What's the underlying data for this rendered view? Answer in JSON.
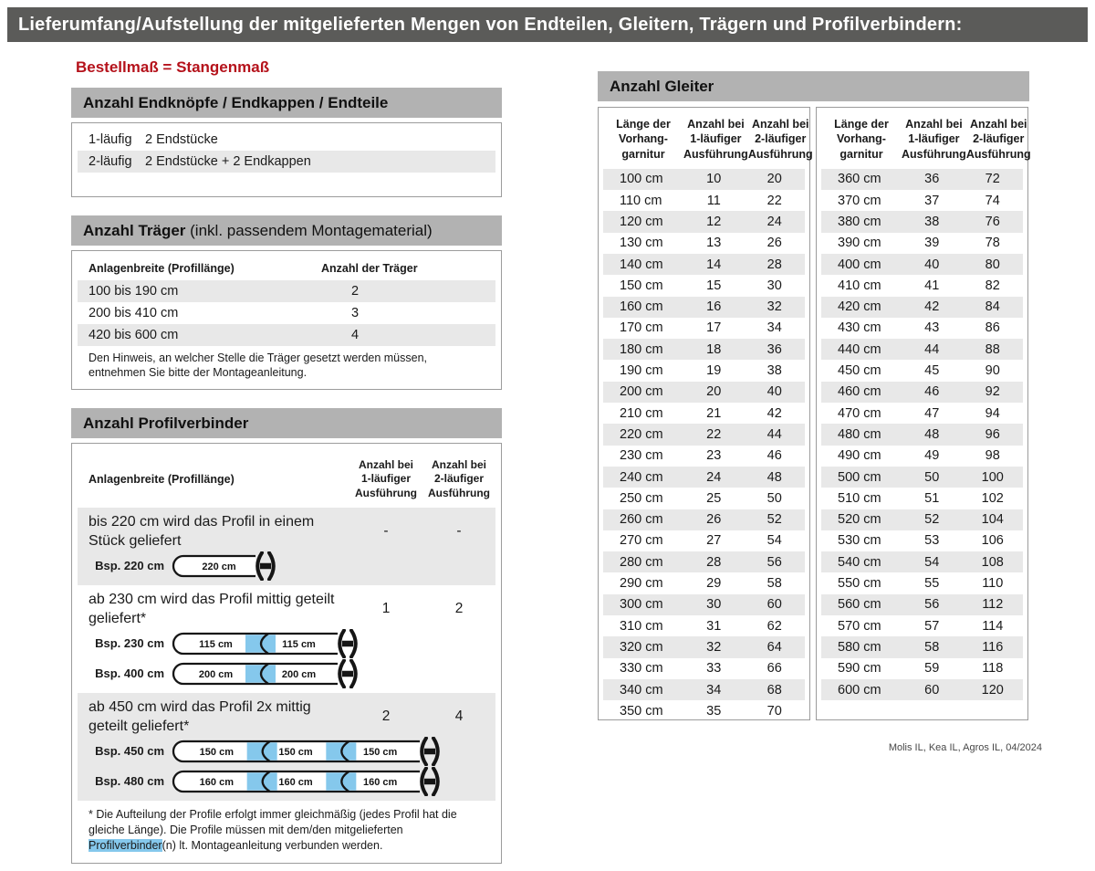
{
  "title": "Lieferumfang/Aufstellung der mitgelieferten Mengen von Endteilen, Gleitern, Trägern und Profilverbindern:",
  "colors": {
    "titlebar_gray": "#5b5b59",
    "section_header_gray": "#b2b2b2",
    "row_stripe_gray": "#e8e8e8",
    "border_gray": "#9c9c9c",
    "accent_red": "#b5121b",
    "connector_blue": "#85c8ec",
    "text_black": "#1a1a1a"
  },
  "left": {
    "order_note": "Bestellmaß = Stangenmaß",
    "endteile": {
      "header": "Anzahl Endknöpfe / Endkappen / Endteile",
      "rows": [
        {
          "label": "1-läufig",
          "value": "2 Endstücke"
        },
        {
          "label": "2-läufig",
          "value": "2 Endstücke + 2 Endkappen"
        }
      ]
    },
    "traeger": {
      "header_bold": "Anzahl Träger",
      "header_rest": " (inkl. passendem Montagematerial)",
      "col1": "Anlagenbreite (Profillänge)",
      "col2": "Anzahl der Träger",
      "rows": [
        {
          "range": "100 bis 190 cm",
          "count": "2"
        },
        {
          "range": "200 bis 410 cm",
          "count": "3"
        },
        {
          "range": "420 bis 600 cm",
          "count": "4"
        }
      ],
      "note": "Den Hinweis, an welcher Stelle die Träger gesetzt werden müssen, entnehmen Sie bitte der Montageanleitung."
    },
    "verbinder": {
      "header": "Anzahl Profilverbinder",
      "col1": "Anlagenbreite (Profillänge)",
      "col2_lines": [
        "Anzahl bei",
        "1-läufiger",
        "Ausführung"
      ],
      "col3_lines": [
        "Anzahl bei",
        "2-läufiger",
        "Ausführung"
      ],
      "groups": [
        {
          "text": "bis 220 cm wird das Profil in einem Stück geliefert",
          "val1": "-",
          "val2": "-",
          "shaded": true,
          "examples": [
            {
              "label": "Bsp. 220 cm",
              "segments": [
                "220 cm"
              ]
            }
          ]
        },
        {
          "text": "ab 230 cm wird das Profil mittig geteilt geliefert*",
          "val1": "1",
          "val2": "2",
          "shaded": false,
          "examples": [
            {
              "label": "Bsp. 230 cm",
              "segments": [
                "115 cm",
                "115 cm"
              ]
            },
            {
              "label": "Bsp. 400 cm",
              "segments": [
                "200 cm",
                "200 cm"
              ]
            }
          ]
        },
        {
          "text": "ab 450 cm wird das Profil 2x mittig geteilt geliefert*",
          "val1": "2",
          "val2": "4",
          "shaded": true,
          "examples": [
            {
              "label": "Bsp. 450 cm",
              "segments": [
                "150 cm",
                "150 cm",
                "150 cm"
              ]
            },
            {
              "label": "Bsp. 480 cm",
              "segments": [
                "160 cm",
                "160 cm",
                "160 cm"
              ]
            }
          ]
        }
      ],
      "footnote_parts": [
        "* Die Aufteilung der Profile erfolgt immer gleichmäßig (jedes Profil hat die gleiche Länge). Die Profile müssen mit dem/den mitgelieferten ",
        "Profilverbinder",
        "(n) lt. Montageanleitung verbunden werden."
      ]
    }
  },
  "right": {
    "header": "Anzahl Gleiter",
    "col_headers": [
      [
        "Länge der",
        "Vorhang-",
        "garnitur"
      ],
      [
        "Anzahl bei",
        "1-läufiger",
        "Ausführung"
      ],
      [
        "Anzahl bei",
        "2-läufiger",
        "Ausführung"
      ]
    ],
    "table1": [
      [
        "100 cm",
        "10",
        "20"
      ],
      [
        "110 cm",
        "11",
        "22"
      ],
      [
        "120 cm",
        "12",
        "24"
      ],
      [
        "130 cm",
        "13",
        "26"
      ],
      [
        "140 cm",
        "14",
        "28"
      ],
      [
        "150 cm",
        "15",
        "30"
      ],
      [
        "160 cm",
        "16",
        "32"
      ],
      [
        "170 cm",
        "17",
        "34"
      ],
      [
        "180 cm",
        "18",
        "36"
      ],
      [
        "190 cm",
        "19",
        "38"
      ],
      [
        "200 cm",
        "20",
        "40"
      ],
      [
        "210 cm",
        "21",
        "42"
      ],
      [
        "220 cm",
        "22",
        "44"
      ],
      [
        "230 cm",
        "23",
        "46"
      ],
      [
        "240 cm",
        "24",
        "48"
      ],
      [
        "250 cm",
        "25",
        "50"
      ],
      [
        "260 cm",
        "26",
        "52"
      ],
      [
        "270 cm",
        "27",
        "54"
      ],
      [
        "280 cm",
        "28",
        "56"
      ],
      [
        "290 cm",
        "29",
        "58"
      ],
      [
        "300 cm",
        "30",
        "60"
      ],
      [
        "310 cm",
        "31",
        "62"
      ],
      [
        "320 cm",
        "32",
        "64"
      ],
      [
        "330 cm",
        "33",
        "66"
      ],
      [
        "340 cm",
        "34",
        "68"
      ],
      [
        "350 cm",
        "35",
        "70"
      ]
    ],
    "table2": [
      [
        "360 cm",
        "36",
        "72"
      ],
      [
        "370 cm",
        "37",
        "74"
      ],
      [
        "380 cm",
        "38",
        "76"
      ],
      [
        "390 cm",
        "39",
        "78"
      ],
      [
        "400 cm",
        "40",
        "80"
      ],
      [
        "410 cm",
        "41",
        "82"
      ],
      [
        "420 cm",
        "42",
        "84"
      ],
      [
        "430 cm",
        "43",
        "86"
      ],
      [
        "440 cm",
        "44",
        "88"
      ],
      [
        "450 cm",
        "45",
        "90"
      ],
      [
        "460 cm",
        "46",
        "92"
      ],
      [
        "470 cm",
        "47",
        "94"
      ],
      [
        "480 cm",
        "48",
        "96"
      ],
      [
        "490 cm",
        "49",
        "98"
      ],
      [
        "500 cm",
        "50",
        "100"
      ],
      [
        "510 cm",
        "51",
        "102"
      ],
      [
        "520 cm",
        "52",
        "104"
      ],
      [
        "530 cm",
        "53",
        "106"
      ],
      [
        "540 cm",
        "54",
        "108"
      ],
      [
        "550 cm",
        "55",
        "110"
      ],
      [
        "560 cm",
        "56",
        "112"
      ],
      [
        "570 cm",
        "57",
        "114"
      ],
      [
        "580 cm",
        "58",
        "116"
      ],
      [
        "590 cm",
        "59",
        "118"
      ],
      [
        "600 cm",
        "60",
        "120"
      ]
    ]
  },
  "footer": "Molis IL, Kea IL, Agros IL, 04/2024"
}
